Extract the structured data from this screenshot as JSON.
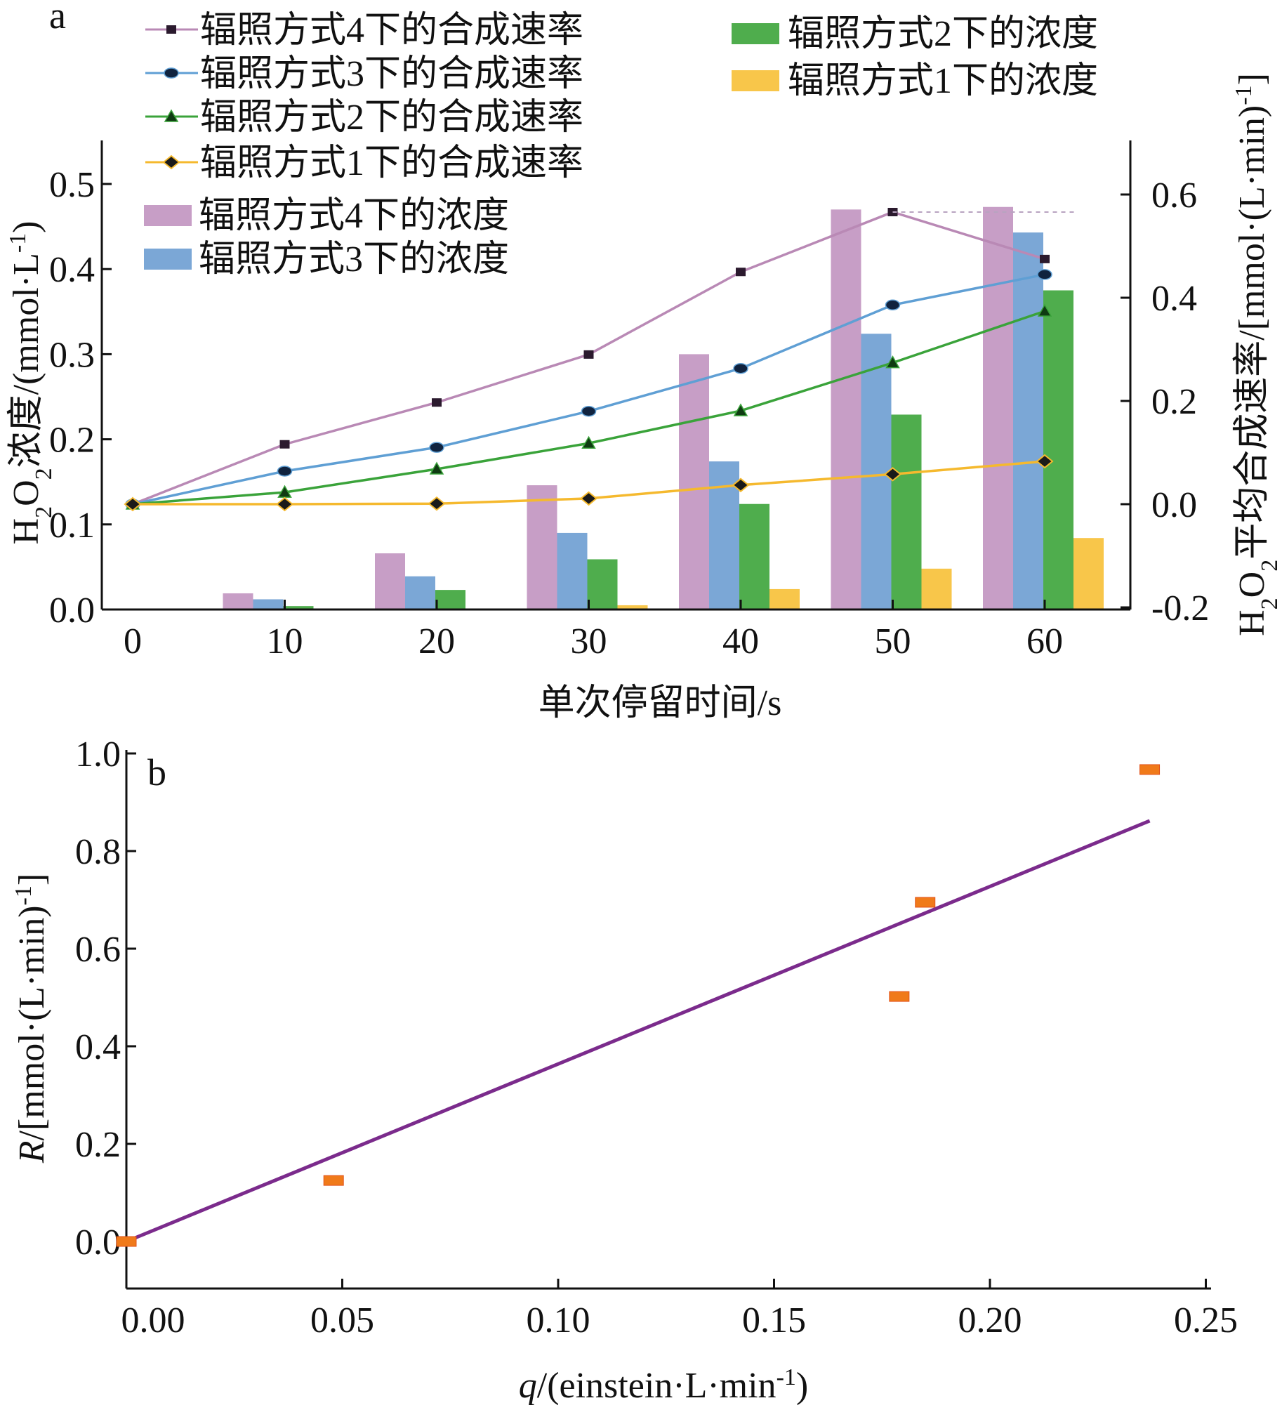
{
  "chart_data": [
    {
      "panel": "a",
      "type": "bar",
      "xlabel_parts": [
        "单次停留时间/s"
      ],
      "ylabel_left_parts": [
        "H",
        "2",
        "O",
        "2",
        "浓度/(mmol·L",
        "-1",
        ")"
      ],
      "ylabel_right_parts": [
        "H",
        "2",
        "O",
        "2",
        "平均合成速率/[mmol·(L·min)",
        "-1",
        "]"
      ],
      "x_ticks": [
        "0",
        "10",
        "20",
        "30",
        "40",
        "50",
        "60"
      ],
      "xlim": [
        0,
        65
      ],
      "ylim_left": [
        0,
        0.55
      ],
      "yticks_left": [
        "0.0",
        "0.1",
        "0.2",
        "0.3",
        "0.4",
        "0.5"
      ],
      "ylim_right": [
        -0.2,
        0.7
      ],
      "yticks_right": [
        "-0.2",
        "0.0",
        "0.2",
        "0.4",
        "0.6"
      ],
      "categories": [
        10,
        20,
        30,
        40,
        50,
        60
      ],
      "bar_series": [
        {
          "name": "辐照方式4下的浓度",
          "color": "#c79ec6",
          "values": [
            0.019,
            0.066,
            0.146,
            0.3,
            0.47,
            0.473
          ]
        },
        {
          "name": "辐照方式3下的浓度",
          "color": "#7ba7d6",
          "values": [
            0.012,
            0.039,
            0.09,
            0.174,
            0.324,
            0.443
          ]
        },
        {
          "name": "辐照方式2下的浓度",
          "color": "#4fad4d",
          "values": [
            0.004,
            0.023,
            0.059,
            0.124,
            0.229,
            0.375
          ]
        },
        {
          "name": "辐照方式1下的浓度",
          "color": "#f8c64a",
          "values": [
            0.001,
            0.001,
            0.005,
            0.024,
            0.048,
            0.084
          ]
        }
      ],
      "line_series": [
        {
          "name": "辐照方式4下的合成速率",
          "color": "#b989b5",
          "marker": "square",
          "marker_color": "#2b1a2e",
          "x": [
            0,
            10,
            20,
            30,
            40,
            50,
            60
          ],
          "y": [
            0.0,
            0.116,
            0.197,
            0.29,
            0.45,
            0.566,
            0.475
          ]
        },
        {
          "name": "辐照方式3下的合成速率",
          "color": "#5f9fd4",
          "marker": "circle",
          "marker_color": "#10233f",
          "x": [
            0,
            10,
            20,
            30,
            40,
            50,
            60
          ],
          "y": [
            0.0,
            0.064,
            0.11,
            0.18,
            0.263,
            0.386,
            0.445
          ]
        },
        {
          "name": "辐照方式2下的合成速率",
          "color": "#3aa33a",
          "marker": "triangle",
          "marker_color": "#0f3b12",
          "x": [
            0,
            10,
            20,
            30,
            40,
            50,
            60
          ],
          "y": [
            0.0,
            0.023,
            0.068,
            0.118,
            0.181,
            0.274,
            0.374
          ]
        },
        {
          "name": "辐照方式1下的合成速率",
          "color": "#f5b92e",
          "marker": "diamond",
          "marker_color": "#1a1a1a",
          "x": [
            0,
            10,
            20,
            30,
            40,
            50,
            60
          ],
          "y": [
            0.0,
            0.0,
            0.001,
            0.011,
            0.037,
            0.058,
            0.083
          ]
        }
      ],
      "legend_placement": "top-left (two columns)",
      "grid": false
    },
    {
      "panel": "b",
      "type": "scatter",
      "xlabel_parts": [
        "q",
        "/(einstein·L·min",
        "-1",
        ")"
      ],
      "ylabel_parts": [
        "R",
        "/[mmol·(L·min)",
        "-1",
        "]"
      ],
      "xlim": [
        0.0,
        0.25
      ],
      "ylim": [
        -0.1,
        1.0
      ],
      "x_ticks": [
        "0.00",
        "0.05",
        "0.10",
        "0.15",
        "0.20",
        "0.25"
      ],
      "y_ticks": [
        "0.0",
        "0.2",
        "0.4",
        "0.6",
        "0.8",
        "1.0"
      ],
      "points": [
        {
          "x": 0.0,
          "y": 0.0
        },
        {
          "x": 0.048,
          "y": 0.125
        },
        {
          "x": 0.179,
          "y": 0.502
        },
        {
          "x": 0.185,
          "y": 0.695
        },
        {
          "x": 0.237,
          "y": 0.967
        }
      ],
      "point_color": "#f07a1a",
      "fit_line": {
        "x": [
          0.0,
          0.237
        ],
        "y": [
          0.0,
          0.862
        ],
        "color": "#7b2b8c"
      },
      "grid": false
    }
  ]
}
